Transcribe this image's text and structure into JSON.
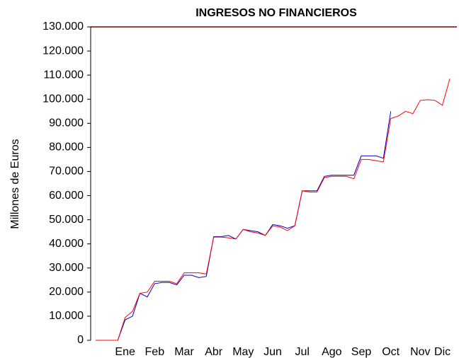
{
  "chart_data": {
    "type": "line",
    "title": "INGRESOS NO FINANCIEROS",
    "y_label": "Millones de Euros",
    "categories": [
      null,
      null,
      null,
      null,
      "Ene",
      null,
      null,
      null,
      "Feb",
      null,
      null,
      null,
      "Mar",
      null,
      null,
      null,
      "Abr",
      null,
      null,
      null,
      "May",
      null,
      null,
      null,
      "Jun",
      null,
      null,
      null,
      "Jul",
      null,
      null,
      null,
      "Ago",
      null,
      null,
      null,
      "Sep",
      null,
      null,
      null,
      "Oct",
      null,
      null,
      null,
      "Nov",
      null,
      null,
      "Dic",
      null
    ],
    "series": [
      {
        "color": "#0000cc",
        "values": [
          0,
          0,
          0,
          0,
          8500,
          10000,
          19500,
          18000,
          23500,
          24000,
          24000,
          23000,
          27000,
          27000,
          26000,
          26500,
          43000,
          43000,
          43500,
          42000,
          46000,
          45500,
          45000,
          43500,
          48000,
          47500,
          46500,
          47500,
          62000,
          62000,
          62000,
          68000,
          68500,
          68500,
          68500,
          68500,
          76500,
          76500,
          76500,
          75500,
          95000,
          null,
          null,
          null,
          null,
          null,
          null,
          null,
          null
        ]
      },
      {
        "color": "#ff0000",
        "values": [
          0,
          0,
          0,
          0,
          9500,
          12000,
          19500,
          20000,
          24500,
          24500,
          24500,
          23500,
          28000,
          28000,
          28000,
          27500,
          42800,
          42800,
          42500,
          42000,
          46000,
          45000,
          44500,
          43500,
          47500,
          47000,
          45500,
          47500,
          62000,
          61500,
          61500,
          67500,
          68000,
          68000,
          68000,
          67000,
          75000,
          75000,
          74500,
          74000,
          92000,
          93000,
          95000,
          94000,
          99500,
          99800,
          99500,
          97500,
          108500
        ]
      }
    ],
    "ylim": [
      0,
      130000
    ],
    "yticks": [
      0,
      {
        "value": 10000,
        "label": "10.000"
      },
      {
        "value": 20000,
        "label": "20.000"
      },
      {
        "value": 30000,
        "label": "30.000"
      },
      {
        "value": 40000,
        "label": "40.000"
      },
      {
        "value": 50000,
        "label": "50.000"
      },
      {
        "value": 60000,
        "label": "60.000"
      },
      {
        "value": 70000,
        "label": "70.000"
      },
      {
        "value": 80000,
        "label": "80.000"
      },
      {
        "value": 90000,
        "label": "90.000"
      },
      {
        "value": 100000,
        "label": "100.000"
      },
      {
        "value": 110000,
        "label": "110.000"
      },
      {
        "value": 120000,
        "label": "120.000"
      },
      {
        "value": 130000,
        "label": "130.000"
      }
    ],
    "grid": false
  }
}
